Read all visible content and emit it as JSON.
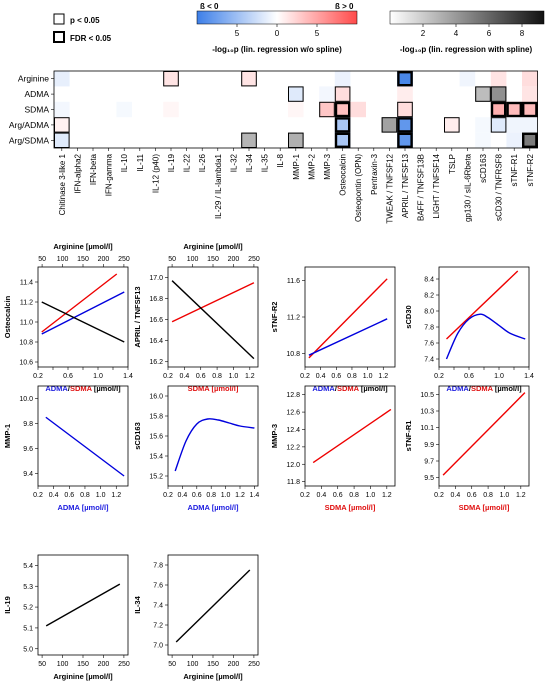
{
  "legend": {
    "p_label": "p < 0.05",
    "fdr_label": "FDR < 0.05",
    "beta_neg": "ß < 0",
    "beta_pos": "ß > 0",
    "beta_ticks": [
      "5",
      "0",
      "5"
    ],
    "beta_axis_title": "-log₁₀p (lin. regression w/o spline)",
    "spline_ticks": [
      "2",
      "4",
      "6",
      "8"
    ],
    "spline_axis_title": "-log₁₀p (lin. regression with spline)"
  },
  "chart_data": [
    {
      "type": "heatmap",
      "rows": [
        "Arginine",
        "ADMA",
        "SDMA",
        "Arg/ADMA",
        "Arg/SDMA"
      ],
      "columns": [
        "Chitinase 3-like 1",
        "IFN-alpha2",
        "IFN-beta",
        "IFN-gamma",
        "IL-10",
        "IL-11",
        "IL-12 (p40)",
        "IL-19",
        "IL-22",
        "IL-26",
        "IL-29 / IL-lambda1",
        "IL-32",
        "IL-34",
        "IL-35",
        "IL-8",
        "MMP-1",
        "MMP-2",
        "MMP-3",
        "Osteocalcin",
        "Osteopontin (OPN)",
        "Pentraxin-3",
        "TWEAK / TNFSF12",
        "APRIL / TNFSF13",
        "BAFF / TNFSF13B",
        "LIGHT / TNFSF14",
        "TSLP",
        "gp130 / sIL-6Rbeta",
        "sCD163",
        "sCD30 / TNFRSF8",
        "sTNF-R1",
        "sTNF-R2"
      ],
      "color_scale_beta": {
        "min": -8,
        "max": 8,
        "neg_color": "#3d7fe8",
        "pos_color": "#ff4a4a"
      },
      "color_scale_spline": {
        "min": 0,
        "max": 9,
        "low_color": "#ffffff",
        "high_color": "#111111"
      },
      "cells": [
        {
          "row": "Arginine",
          "col": "Chitinase 3-like 1",
          "kind": "beta",
          "value": -1
        },
        {
          "row": "Arginine",
          "col": "IL-19",
          "kind": "beta",
          "value": 1.2,
          "sig": "p"
        },
        {
          "row": "Arginine",
          "col": "IL-34",
          "kind": "beta",
          "value": 1.2,
          "sig": "p"
        },
        {
          "row": "Arginine",
          "col": "Osteocalcin",
          "kind": "beta",
          "value": -0.8
        },
        {
          "row": "Arginine",
          "col": "APRIL / TNFSF13",
          "kind": "beta",
          "value": -7.5,
          "sig": "fdr"
        },
        {
          "row": "Arginine",
          "col": "gp130 / sIL-6Rbeta",
          "kind": "beta",
          "value": -0.6
        },
        {
          "row": "Arginine",
          "col": "sCD30 / TNFRSF8",
          "kind": "beta",
          "value": 1.2
        },
        {
          "row": "Arginine",
          "col": "sTNF-R2",
          "kind": "beta",
          "value": 1.5
        },
        {
          "row": "ADMA",
          "col": "MMP-1",
          "kind": "beta",
          "value": -1.3,
          "sig": "p"
        },
        {
          "row": "ADMA",
          "col": "MMP-3",
          "kind": "beta",
          "value": -0.5
        },
        {
          "row": "ADMA",
          "col": "Osteocalcin",
          "kind": "beta",
          "value": 1.5,
          "sig": "p"
        },
        {
          "row": "ADMA",
          "col": "APRIL / TNFSF13",
          "kind": "beta",
          "value": 0.8
        },
        {
          "row": "ADMA",
          "col": "sCD163",
          "kind": "spline",
          "value": 2.5,
          "sig": "p"
        },
        {
          "row": "ADMA",
          "col": "sCD30 / TNFRSF8",
          "kind": "spline",
          "value": 4.2,
          "sig": "p"
        },
        {
          "row": "ADMA",
          "col": "sTNF-R2",
          "kind": "beta",
          "value": 1.2
        },
        {
          "row": "SDMA",
          "col": "Chitinase 3-like 1",
          "kind": "beta",
          "value": -0.5
        },
        {
          "row": "SDMA",
          "col": "IL-10",
          "kind": "beta",
          "value": -0.4
        },
        {
          "row": "SDMA",
          "col": "IL-19",
          "kind": "beta",
          "value": 0.4
        },
        {
          "row": "SDMA",
          "col": "MMP-1",
          "kind": "beta",
          "value": 0.4
        },
        {
          "row": "SDMA",
          "col": "MMP-3",
          "kind": "beta",
          "value": 2.5,
          "sig": "p"
        },
        {
          "row": "SDMA",
          "col": "Osteocalcin",
          "kind": "beta",
          "value": 2.8,
          "sig": "fdr"
        },
        {
          "row": "SDMA",
          "col": "Osteopontin (OPN)",
          "kind": "beta",
          "value": 1.5
        },
        {
          "row": "SDMA",
          "col": "APRIL / TNFSF13",
          "kind": "beta",
          "value": 1.5,
          "sig": "p"
        },
        {
          "row": "SDMA",
          "col": "sCD30 / TNFRSF8",
          "kind": "beta",
          "value": 3.5,
          "sig": "fdr"
        },
        {
          "row": "SDMA",
          "col": "sTNF-R1",
          "kind": "beta",
          "value": 3.0,
          "sig": "fdr"
        },
        {
          "row": "SDMA",
          "col": "sTNF-R2",
          "kind": "beta",
          "value": 3.0,
          "sig": "fdr"
        },
        {
          "row": "Arg/ADMA",
          "col": "Chitinase 3-like 1",
          "kind": "beta",
          "value": 0.6,
          "sig": "p"
        },
        {
          "row": "Arg/ADMA",
          "col": "Osteocalcin",
          "kind": "beta",
          "value": -3.5,
          "sig": "fdr"
        },
        {
          "row": "Arg/ADMA",
          "col": "TWEAK / TNFSF12",
          "kind": "spline",
          "value": 3.5,
          "sig": "p"
        },
        {
          "row": "Arg/ADMA",
          "col": "APRIL / TNFSF13",
          "kind": "beta",
          "value": -6.5,
          "sig": "fdr"
        },
        {
          "row": "Arg/ADMA",
          "col": "TSLP",
          "kind": "beta",
          "value": 0.8,
          "sig": "p"
        },
        {
          "row": "Arg/ADMA",
          "col": "sCD163",
          "kind": "beta",
          "value": -0.4
        },
        {
          "row": "Arg/ADMA",
          "col": "sCD30 / TNFRSF8",
          "kind": "beta",
          "value": -1.3,
          "sig": "p"
        },
        {
          "row": "Arg/ADMA",
          "col": "sTNF-R1",
          "kind": "beta",
          "value": -0.6
        },
        {
          "row": "Arg/ADMA",
          "col": "sTNF-R2",
          "kind": "beta",
          "value": -0.6
        },
        {
          "row": "Arg/SDMA",
          "col": "Chitinase 3-like 1",
          "kind": "beta",
          "value": -1.3,
          "sig": "p"
        },
        {
          "row": "Arg/SDMA",
          "col": "IL-34",
          "kind": "spline",
          "value": 2.8,
          "sig": "p"
        },
        {
          "row": "Arg/SDMA",
          "col": "MMP-1",
          "kind": "spline",
          "value": 3.0,
          "sig": "p"
        },
        {
          "row": "Arg/SDMA",
          "col": "Osteocalcin",
          "kind": "beta",
          "value": -3.5,
          "sig": "fdr"
        },
        {
          "row": "Arg/SDMA",
          "col": "APRIL / TNFSF13",
          "kind": "beta",
          "value": -6.5,
          "sig": "fdr"
        },
        {
          "row": "Arg/SDMA",
          "col": "sCD163",
          "kind": "beta",
          "value": -0.4
        },
        {
          "row": "Arg/SDMA",
          "col": "sTNF-R1",
          "kind": "beta",
          "value": -0.8
        },
        {
          "row": "Arg/SDMA",
          "col": "sTNF-R2",
          "kind": "spline",
          "value": 5.0,
          "sig": "fdr"
        }
      ]
    },
    {
      "type": "line",
      "ylabel": "Osteocalcin",
      "xlabel_parts": [
        {
          "text": "ADMA",
          "color": "#2020e0"
        },
        {
          "text": "/",
          "color": "#000000"
        },
        {
          "text": "SDMA",
          "color": "#e01010"
        },
        {
          "text": " [µmol/l]",
          "color": "#000000"
        }
      ],
      "xticks": [
        0.2,
        0.4,
        0.6,
        0.8,
        1.0,
        1.2,
        1.4
      ],
      "xticklabels": [
        "0.2",
        "0.6",
        "1.0",
        "1.4"
      ],
      "xlim": [
        0.2,
        1.4
      ],
      "yticks": [
        10.6,
        10.8,
        11.0,
        11.2,
        11.4
      ],
      "ylim": [
        10.55,
        11.55
      ],
      "top_axis": {
        "label": "Arginine [µmol/l]",
        "ticks": [
          50,
          100,
          150,
          200,
          250
        ],
        "xlim": [
          40,
          260
        ]
      },
      "series": [
        {
          "color": "#0000dd",
          "x": [
            0.25,
            1.35
          ],
          "y": [
            10.88,
            11.3
          ]
        },
        {
          "color": "#ee0000",
          "x": [
            0.25,
            1.25
          ],
          "y": [
            10.9,
            11.48
          ]
        },
        {
          "color": "#000000",
          "x": [
            0.25,
            1.35
          ],
          "y": [
            11.2,
            10.8
          ]
        }
      ]
    },
    {
      "type": "line",
      "ylabel": "APRIL / TNFSF13",
      "xlabel_parts": [
        {
          "text": "SDMA [µmol/l]",
          "color": "#e01010"
        }
      ],
      "xticks": [
        0.2,
        0.4,
        0.6,
        0.8,
        1.0,
        1.2
      ],
      "xticklabels": [
        "0.2",
        "0.4",
        "0.6",
        "0.8",
        "1.0",
        "1.2"
      ],
      "xlim": [
        0.2,
        1.3
      ],
      "yticks": [
        16.2,
        16.4,
        16.6,
        16.8,
        17.0
      ],
      "ylim": [
        16.15,
        17.1
      ],
      "top_axis": {
        "label": "Arginine [µmol/l]",
        "ticks": [
          50,
          100,
          150,
          200,
          250
        ],
        "xlim": [
          40,
          260
        ]
      },
      "series": [
        {
          "color": "#ee0000",
          "x": [
            0.25,
            1.25
          ],
          "y": [
            16.58,
            16.95
          ]
        },
        {
          "color": "#000000",
          "x": [
            0.25,
            1.25
          ],
          "y": [
            16.97,
            16.23
          ]
        }
      ]
    },
    {
      "type": "line",
      "ylabel": "sTNF-R2",
      "xlabel_parts": [
        {
          "text": "ADMA",
          "color": "#2020e0"
        },
        {
          "text": "/",
          "color": "#000000"
        },
        {
          "text": "SDMA",
          "color": "#e01010"
        },
        {
          "text": " [µmol/l]",
          "color": "#000000"
        }
      ],
      "xticks": [
        0.2,
        0.4,
        0.6,
        0.8,
        1.0,
        1.2
      ],
      "xticklabels": [
        "0.2",
        "0.4",
        "0.6",
        "0.8",
        "1.0",
        "1.2"
      ],
      "xlim": [
        0.2,
        1.35
      ],
      "yticks": [
        10.8,
        11.2,
        11.6
      ],
      "ylim": [
        10.65,
        11.75
      ],
      "series": [
        {
          "color": "#ee0000",
          "x": [
            0.25,
            1.25
          ],
          "y": [
            10.75,
            11.62
          ]
        },
        {
          "color": "#0000dd",
          "x": [
            0.25,
            1.25
          ],
          "y": [
            10.78,
            11.18
          ]
        }
      ]
    },
    {
      "type": "line",
      "ylabel": "sCD30",
      "xlabel_parts": [
        {
          "text": "ADMA",
          "color": "#2020e0"
        },
        {
          "text": "/",
          "color": "#000000"
        },
        {
          "text": "SDMA",
          "color": "#e01010"
        },
        {
          "text": " [µmol/l]",
          "color": "#000000"
        }
      ],
      "xticks": [
        0.2,
        0.4,
        0.6,
        0.8,
        1.0,
        1.2,
        1.4
      ],
      "xticklabels": [
        "0.2",
        "0.6",
        "1.0",
        "1.4"
      ],
      "xlim": [
        0.2,
        1.4
      ],
      "yticks": [
        7.4,
        7.6,
        7.8,
        8.0,
        8.2,
        8.4
      ],
      "ylim": [
        7.3,
        8.55
      ],
      "series": [
        {
          "color": "#ee0000",
          "x": [
            0.3,
            1.25
          ],
          "y": [
            7.65,
            8.5
          ]
        },
        {
          "color": "#0000dd",
          "x": [
            0.3,
            0.45,
            0.6,
            0.75,
            0.85,
            1.0,
            1.15,
            1.35
          ],
          "y": [
            7.4,
            7.72,
            7.9,
            7.96,
            7.92,
            7.82,
            7.72,
            7.65
          ]
        }
      ]
    },
    {
      "type": "line",
      "ylabel": "MMP-1",
      "xlabel_parts": [
        {
          "text": "ADMA [µmol/l]",
          "color": "#2020e0"
        }
      ],
      "xticks": [
        0.2,
        0.4,
        0.6,
        0.8,
        1.0,
        1.2
      ],
      "xticklabels": [
        "0.2",
        "0.4",
        "0.6",
        "0.8",
        "1.0",
        "1.2"
      ],
      "xlim": [
        0.2,
        1.35
      ],
      "yticks": [
        9.4,
        9.6,
        9.8,
        10.0
      ],
      "ylim": [
        9.3,
        10.1
      ],
      "series": [
        {
          "color": "#0000dd",
          "x": [
            0.3,
            1.3
          ],
          "y": [
            9.85,
            9.38
          ]
        }
      ]
    },
    {
      "type": "line",
      "ylabel": "sCD163",
      "xlabel_parts": [
        {
          "text": "ADMA [µmol/l]",
          "color": "#2020e0"
        }
      ],
      "xticks": [
        0.2,
        0.4,
        0.6,
        0.8,
        1.0,
        1.2,
        1.4
      ],
      "xticklabels": [
        "0.2",
        "0.4",
        "0.6",
        "0.8",
        "1.0",
        "1.2",
        "1.4"
      ],
      "xlim": [
        0.2,
        1.45
      ],
      "yticks": [
        15.2,
        15.4,
        15.6,
        15.8,
        16.0
      ],
      "ylim": [
        15.1,
        16.1
      ],
      "series": [
        {
          "color": "#0000dd",
          "x": [
            0.3,
            0.45,
            0.6,
            0.75,
            0.9,
            1.05,
            1.2,
            1.4
          ],
          "y": [
            15.25,
            15.55,
            15.72,
            15.77,
            15.76,
            15.73,
            15.7,
            15.68
          ]
        }
      ]
    },
    {
      "type": "line",
      "ylabel": "MMP-3",
      "xlabel_parts": [
        {
          "text": "SDMA [µmol/l]",
          "color": "#e01010"
        }
      ],
      "xticks": [
        0.2,
        0.4,
        0.6,
        0.8,
        1.0,
        1.2
      ],
      "xticklabels": [
        "0.2",
        "0.4",
        "0.6",
        "0.8",
        "1.0",
        "1.2"
      ],
      "xlim": [
        0.2,
        1.3
      ],
      "yticks": [
        11.8,
        12.0,
        12.2,
        12.4,
        12.6,
        12.8
      ],
      "ylim": [
        11.75,
        12.9
      ],
      "series": [
        {
          "color": "#ee0000",
          "x": [
            0.3,
            1.25
          ],
          "y": [
            12.02,
            12.63
          ]
        }
      ]
    },
    {
      "type": "line",
      "ylabel": "sTNF-R1",
      "xlabel_parts": [
        {
          "text": "SDMA [µmol/l]",
          "color": "#e01010"
        }
      ],
      "xticks": [
        0.2,
        0.4,
        0.6,
        0.8,
        1.0,
        1.2
      ],
      "xticklabels": [
        "0.2",
        "0.4",
        "0.6",
        "0.8",
        "1.0",
        "1.2"
      ],
      "xlim": [
        0.2,
        1.3
      ],
      "yticks": [
        9.5,
        9.7,
        9.9,
        10.1,
        10.3,
        10.5
      ],
      "ylim": [
        9.4,
        10.6
      ],
      "series": [
        {
          "color": "#ee0000",
          "x": [
            0.25,
            1.25
          ],
          "y": [
            9.53,
            10.52
          ]
        }
      ]
    },
    {
      "type": "line",
      "ylabel": "IL-19",
      "xlabel_parts": [
        {
          "text": "Arginine [µmol/l]",
          "color": "#000000"
        }
      ],
      "xticks": [
        50,
        100,
        150,
        200,
        250
      ],
      "xticklabels": [
        "50",
        "100",
        "150",
        "200",
        "250"
      ],
      "xlim": [
        40,
        260
      ],
      "yticks": [
        5.0,
        5.1,
        5.2,
        5.3,
        5.4
      ],
      "ylim": [
        4.97,
        5.45
      ],
      "series": [
        {
          "color": "#000000",
          "x": [
            60,
            240
          ],
          "y": [
            5.11,
            5.31
          ]
        }
      ]
    },
    {
      "type": "line",
      "ylabel": "IL-34",
      "xlabel_parts": [
        {
          "text": "Arginine [µmol/l]",
          "color": "#000000"
        }
      ],
      "xticks": [
        50,
        100,
        150,
        200,
        250
      ],
      "xticklabels": [
        "50",
        "100",
        "150",
        "200",
        "250"
      ],
      "xlim": [
        40,
        260
      ],
      "yticks": [
        7.0,
        7.2,
        7.4,
        7.6,
        7.8
      ],
      "ylim": [
        6.9,
        7.9
      ],
      "series": [
        {
          "color": "#000000",
          "x": [
            60,
            240
          ],
          "y": [
            7.03,
            7.75
          ]
        }
      ]
    }
  ]
}
